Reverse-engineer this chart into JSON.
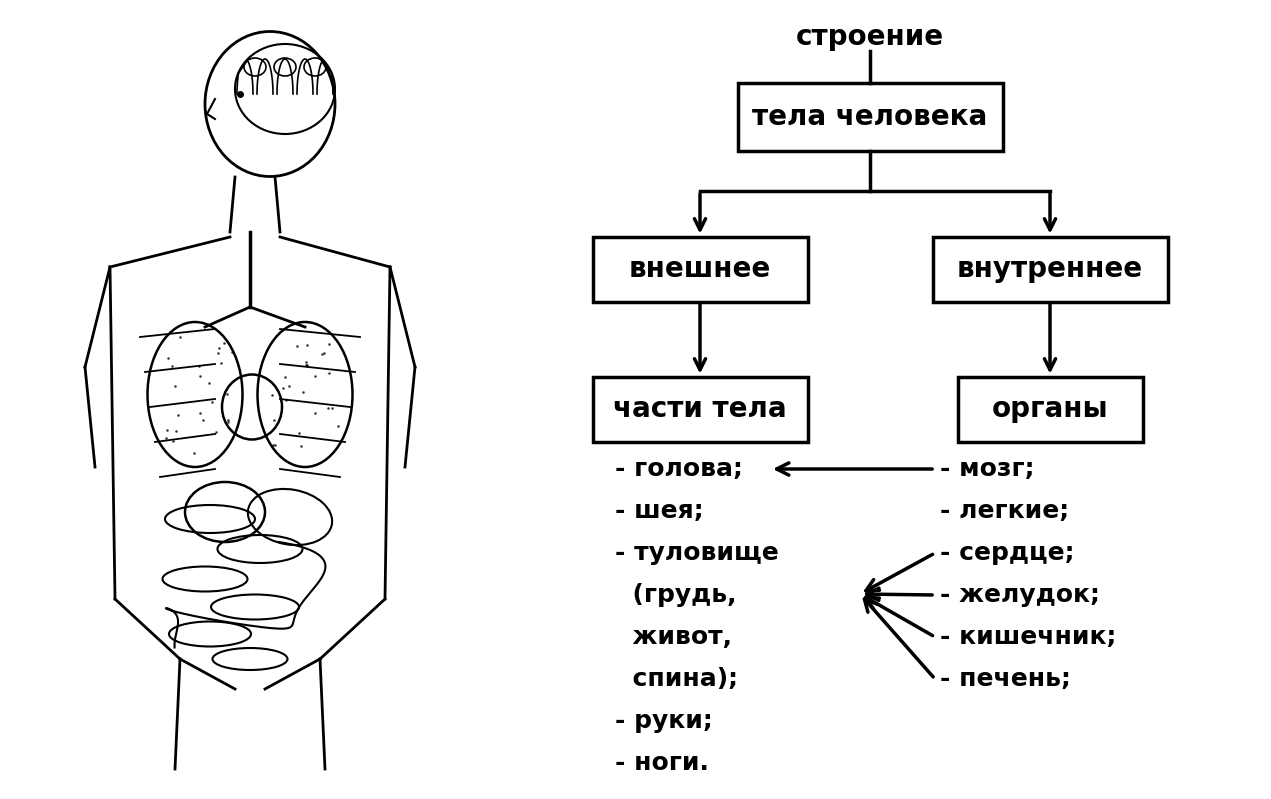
{
  "bg_color": "#ffffff",
  "title_text": "строение",
  "box_tela": "тела человека",
  "box_vnesh": "внешнее",
  "box_vnutr": "внутреннее",
  "box_chasti": "части тела",
  "box_organy": "органы",
  "left_list_lines": [
    "- голова;",
    "- шея;",
    "- туловище",
    "  (грудь,",
    "  живот,",
    "  спина);",
    "- руки;",
    "- ноги."
  ],
  "right_list_lines": [
    "- мозг;",
    "- легкие;",
    "- сердце;",
    "- желудок;",
    "- кишечник;",
    "- печень;"
  ],
  "font_size_boxes": 20,
  "font_size_title": 20,
  "font_size_list": 18
}
